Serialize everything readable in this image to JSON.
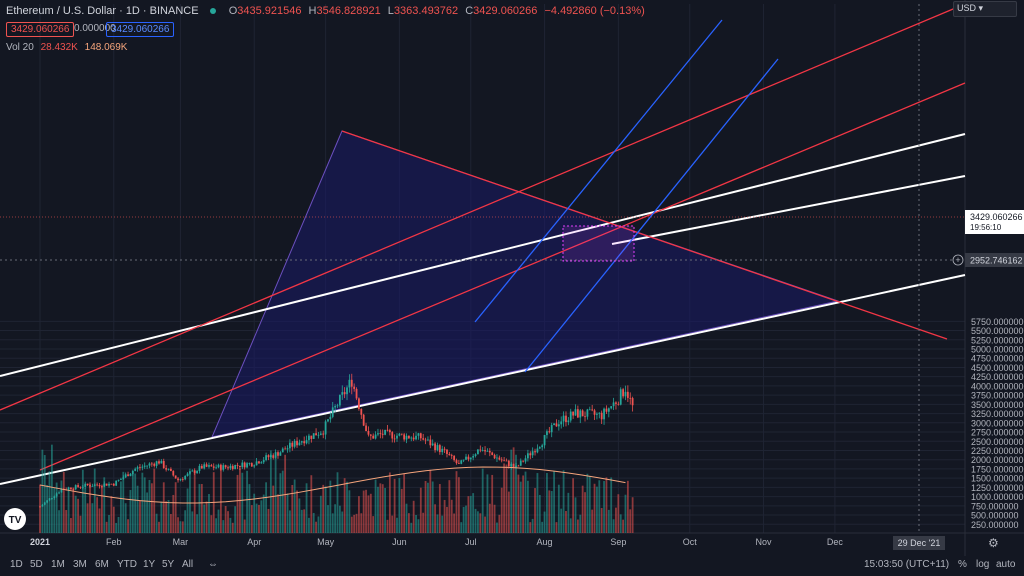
{
  "header": {
    "symbol": "Ethereum / U.S. Dollar · 1D · BINANCE",
    "open_label": "O",
    "open": "3435.921546",
    "high_label": "H",
    "high": "3546.828921",
    "low_label": "L",
    "low": "3363.493762",
    "close_label": "C",
    "close": "3429.060266",
    "change": "−4.492860 (−0.13%)",
    "sell_price": "3429.060266",
    "spread": "0.000000",
    "buy_price": "3429.060266"
  },
  "volume": {
    "label": "Vol 20",
    "value": "28.432K",
    "ma": "148.069K"
  },
  "currency": "USD",
  "price_axis": {
    "last_price": "3429.060266",
    "countdown": "19:56:10",
    "crosshair_price": "2952.746162"
  },
  "date_axis": {
    "crosshair_date": "29 Dec '21"
  },
  "toolbar": {
    "ranges": [
      "1D",
      "5D",
      "1M",
      "3M",
      "6M",
      "YTD",
      "1Y",
      "5Y",
      "All"
    ],
    "time": "15:03:50 (UTC+11)",
    "percent": "%",
    "log": "log",
    "auto": "auto"
  },
  "colors": {
    "background": "#131722",
    "up": "#26a69a",
    "down": "#ef5350",
    "channel_white": "#ffffff",
    "channel_red": "#f23645",
    "channel_blue": "#2962ff",
    "triangle_fill": "#1a1a66",
    "rectangle": "#e040fb"
  },
  "chart_data": {
    "type": "candlestick",
    "y_ticks": [
      250,
      500,
      750,
      1000,
      1250,
      1500,
      1750,
      2000,
      2250,
      2500,
      2750,
      3000,
      3250,
      3500,
      3750,
      4000,
      4250,
      4500,
      4750,
      5000,
      5250,
      5500,
      5750
    ],
    "ylim": [
      0,
      5850
    ],
    "x_ticks": [
      "2021",
      "Feb",
      "Mar",
      "Apr",
      "May",
      "Jun",
      "Jul",
      "Aug",
      "Sep",
      "Oct",
      "Nov",
      "Dec"
    ],
    "price_path": [
      [
        "2021-01-01",
        730
      ],
      [
        "2021-01-10",
        1200
      ],
      [
        "2021-01-20",
        1300
      ],
      [
        "2021-02-01",
        1350
      ],
      [
        "2021-02-10",
        1750
      ],
      [
        "2021-02-20",
        1950
      ],
      [
        "2021-02-28",
        1450
      ],
      [
        "2021-03-10",
        1800
      ],
      [
        "2021-03-20",
        1800
      ],
      [
        "2021-03-31",
        1900
      ],
      [
        "2021-04-10",
        2150
      ],
      [
        "2021-04-20",
        2500
      ],
      [
        "2021-04-30",
        2800
      ],
      [
        "2021-05-05",
        3400
      ],
      [
        "2021-05-12",
        4150
      ],
      [
        "2021-05-19",
        2600
      ],
      [
        "2021-05-25",
        2700
      ],
      [
        "2021-06-01",
        2650
      ],
      [
        "2021-06-10",
        2600
      ],
      [
        "2021-06-20",
        2200
      ],
      [
        "2021-06-26",
        1850
      ],
      [
        "2021-07-05",
        2300
      ],
      [
        "2021-07-15",
        1950
      ],
      [
        "2021-07-20",
        1780
      ],
      [
        "2021-07-31",
        2500
      ],
      [
        "2021-08-07",
        3050
      ],
      [
        "2021-08-14",
        3250
      ],
      [
        "2021-08-25",
        3200
      ],
      [
        "2021-09-01",
        3650
      ],
      [
        "2021-09-04",
        3950
      ],
      [
        "2021-09-07",
        3429
      ]
    ],
    "volume_note": "volume histogram at bottom with 20-period moving average"
  }
}
